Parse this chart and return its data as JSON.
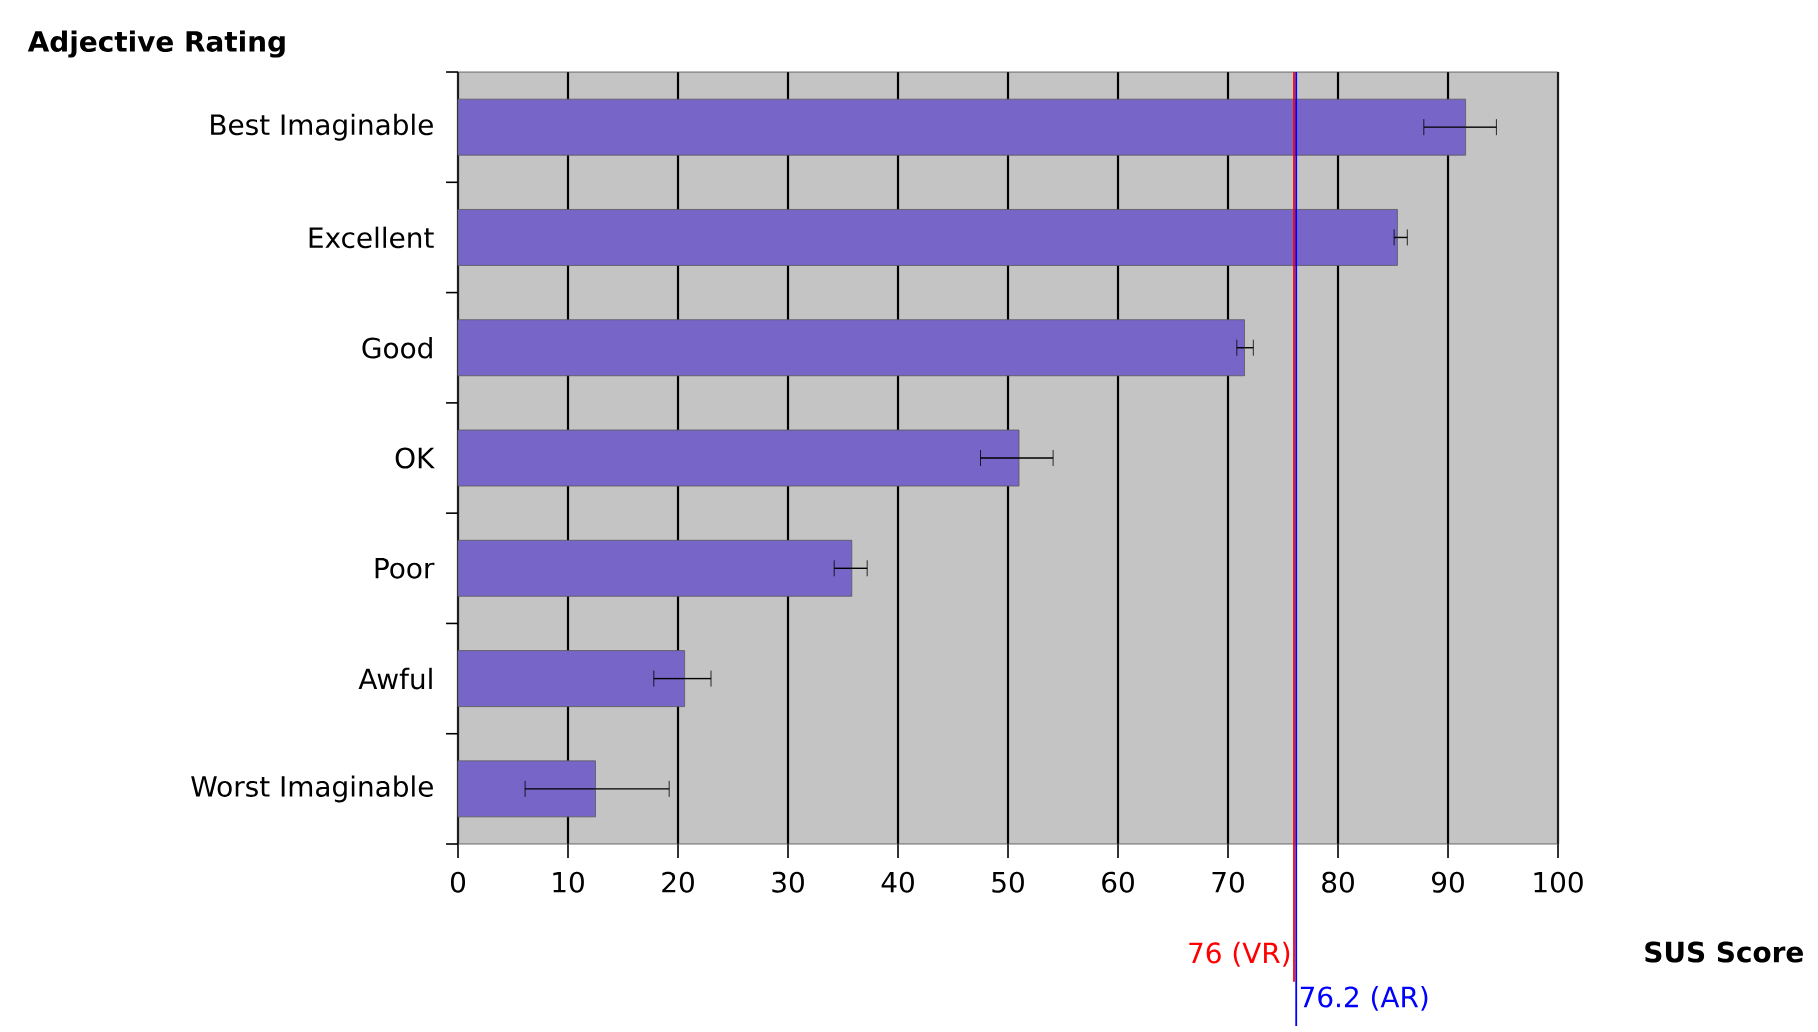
{
  "chart_data": {
    "type": "bar",
    "orientation": "horizontal",
    "xlabel": "SUS Score",
    "ylabel": "Adjective Rating",
    "categories": [
      "Best Imaginable",
      "Excellent",
      "Good",
      "OK",
      "Poor",
      "Awful",
      "Worst Imaginable"
    ],
    "values": [
      91.6,
      85.4,
      71.5,
      51.0,
      35.8,
      20.6,
      12.5
    ],
    "errors": [
      [
        87.8,
        94.4
      ],
      [
        85.1,
        86.3
      ],
      [
        70.8,
        72.3
      ],
      [
        47.5,
        54.1
      ],
      [
        34.2,
        37.2
      ],
      [
        17.8,
        23.0
      ],
      [
        6.1,
        19.2
      ]
    ],
    "color": "#7765c7",
    "xlim": [
      0,
      100
    ],
    "xticks": [
      0,
      10,
      20,
      30,
      40,
      50,
      60,
      70,
      80,
      90,
      100
    ],
    "grid": "x",
    "ref_lines": [
      {
        "axis": "x",
        "value": 76,
        "label": "76 (VR)",
        "color": "#ff0000"
      },
      {
        "axis": "x",
        "value": 76.2,
        "label": "76.2 (AR)",
        "color": "#0000ff"
      }
    ]
  }
}
